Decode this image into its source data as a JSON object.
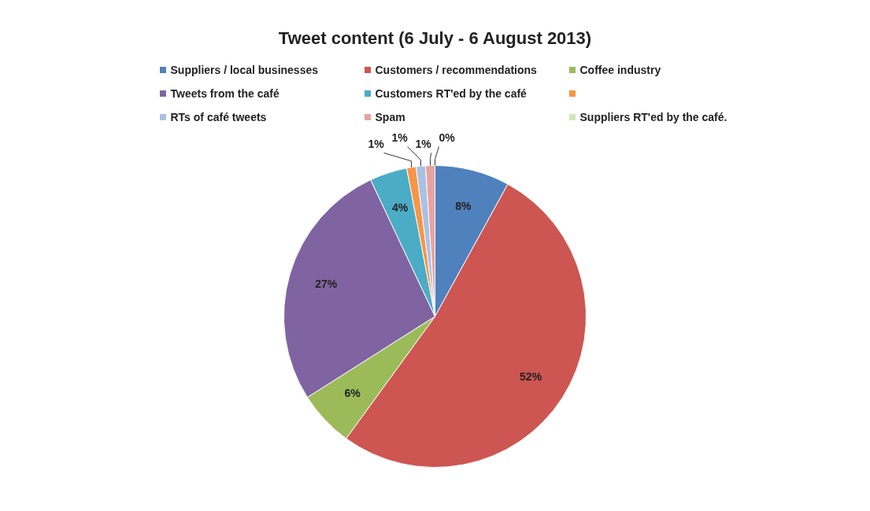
{
  "chart_data": {
    "type": "pie",
    "title": "Tweet content (6 July - 6 August 2013)",
    "categories": [
      "Suppliers / local businesses",
      "Customers / recommendations",
      "Coffee industry",
      "Tweets from the café",
      "Customers RT'ed by the café",
      null,
      "RTs of café tweets",
      "Spam",
      "Suppliers RT'ed by the café."
    ],
    "values": [
      8,
      52,
      6,
      27,
      4,
      1,
      1,
      1,
      0
    ],
    "value_labels": [
      "8%",
      "52%",
      "6%",
      "27%",
      "4%",
      "1%",
      "1%",
      "1%",
      "0%"
    ],
    "colors": [
      "#4f81bd",
      "#cd5552",
      "#9bbb59",
      "#8064a2",
      "#4bacc6",
      "#f79646",
      "#a9c1e4",
      "#e8a3a1",
      "#d4e6b5"
    ],
    "legend": "top"
  }
}
